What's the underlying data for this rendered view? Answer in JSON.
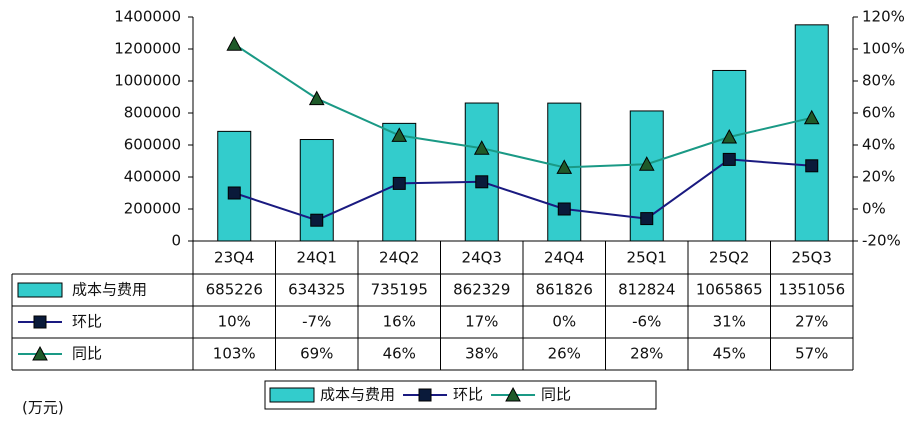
{
  "chart_data": {
    "type": "bar-line",
    "categories": [
      "23Q4",
      "24Q1",
      "24Q2",
      "24Q3",
      "24Q4",
      "25Q1",
      "25Q2",
      "25Q3"
    ],
    "series": [
      {
        "name": "成本与费用",
        "type": "bar",
        "color": "#33cccc",
        "values": [
          685226,
          634325,
          735195,
          862329,
          861826,
          812824,
          1065865,
          1351056
        ]
      },
      {
        "name": "环比",
        "type": "line",
        "axis": "y2",
        "color": "#1a1a80",
        "marker": "square",
        "values": [
          10,
          -7,
          16,
          17,
          0,
          -6,
          31,
          27
        ],
        "value_labels": [
          "10%",
          "-7%",
          "16%",
          "17%",
          "0%",
          "-6%",
          "31%",
          "27%"
        ]
      },
      {
        "name": "同比",
        "type": "line",
        "axis": "y2",
        "color": "#1a9985",
        "marker": "triangle",
        "values": [
          103,
          69,
          46,
          38,
          26,
          28,
          45,
          57
        ],
        "value_labels": [
          "103%",
          "69%",
          "46%",
          "38%",
          "26%",
          "28%",
          "45%",
          "57%"
        ]
      }
    ],
    "ylim": [
      0,
      1400000
    ],
    "yticks": [
      0,
      200000,
      400000,
      600000,
      800000,
      1000000,
      1200000,
      1400000
    ],
    "y2lim": [
      -20,
      120
    ],
    "y2ticks": [
      {
        "value": -20,
        "label": "-20%"
      },
      {
        "value": 0,
        "label": "0%"
      },
      {
        "value": 20,
        "label": "20%"
      },
      {
        "value": 40,
        "label": "40%"
      },
      {
        "value": 60,
        "label": "60%"
      },
      {
        "value": 80,
        "label": "80%"
      },
      {
        "value": 100,
        "label": "100%"
      },
      {
        "value": 120,
        "label": "120%"
      }
    ],
    "unit": "(万元)"
  }
}
